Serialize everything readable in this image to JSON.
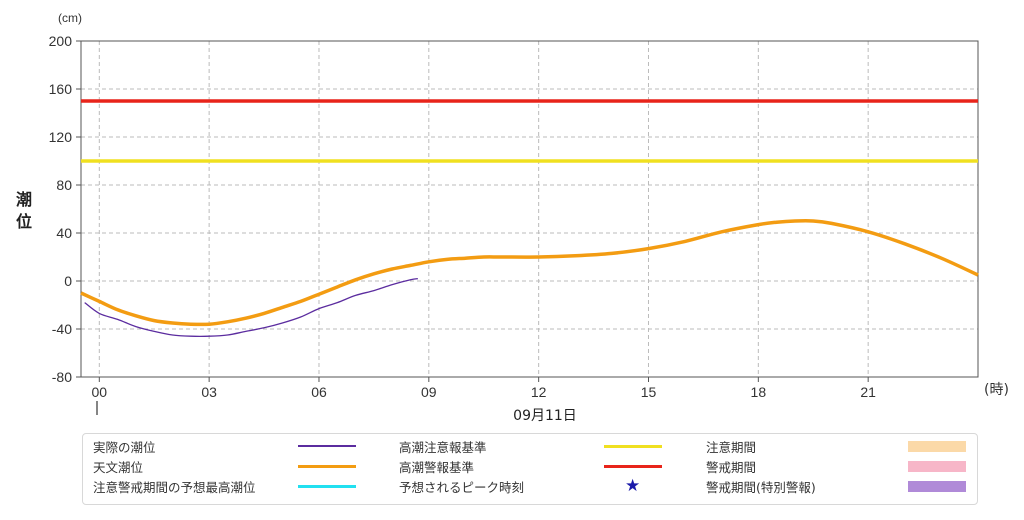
{
  "chart_data": {
    "type": "line",
    "ylabel": "潮位",
    "yunit": "(cm)",
    "xunit": "(時)",
    "date_label": "09月11日",
    "ylim": [
      -80,
      200
    ],
    "yticks": [
      200,
      160,
      120,
      80,
      40,
      0,
      -40,
      -80
    ],
    "xlim": [
      -0.5,
      24
    ],
    "xticks": [
      {
        "x": 0,
        "label": "00"
      },
      {
        "x": 3,
        "label": "03"
      },
      {
        "x": 6,
        "label": "06"
      },
      {
        "x": 9,
        "label": "09"
      },
      {
        "x": 12,
        "label": "12"
      },
      {
        "x": 15,
        "label": "15"
      },
      {
        "x": 18,
        "label": "18"
      },
      {
        "x": 21,
        "label": "21"
      }
    ],
    "grid": true,
    "series": [
      {
        "name": "天文潮位",
        "color": "#f39c12",
        "x": [
          -0.5,
          0,
          0.5,
          1,
          1.5,
          2,
          2.5,
          3,
          3.5,
          4,
          4.5,
          5,
          5.5,
          6,
          6.5,
          7,
          7.5,
          8,
          8.5,
          9,
          9.5,
          10,
          10.5,
          11,
          12,
          13,
          14,
          15,
          16,
          17,
          18,
          18.5,
          19,
          19.5,
          20,
          21,
          22,
          23,
          24
        ],
        "values": [
          -10,
          -17,
          -24,
          -29,
          -33,
          -35,
          -36,
          -36,
          -34,
          -31,
          -27,
          -22,
          -17,
          -11,
          -5,
          1,
          6,
          10,
          13,
          16,
          18,
          19,
          20,
          20,
          20,
          21,
          23,
          27,
          33,
          41,
          47,
          49,
          50,
          50,
          48,
          41,
          31,
          19,
          5
        ]
      },
      {
        "name": "実際の潮位",
        "color": "#5b2c9f",
        "x": [
          -0.4,
          0,
          0.5,
          1,
          1.5,
          2,
          2.5,
          3,
          3.5,
          4,
          4.5,
          5,
          5.5,
          6,
          6.5,
          7,
          7.5,
          8,
          8.5,
          8.7
        ],
        "values": [
          -18,
          -27,
          -32,
          -38,
          -42,
          -45,
          -46,
          -46,
          -45,
          -42,
          -39,
          -35,
          -30,
          -23,
          -18,
          -12,
          -8,
          -3,
          1,
          2
        ]
      },
      {
        "name": "高潮警報基準",
        "color": "#e8241a",
        "x": [
          -0.5,
          24
        ],
        "values": [
          150,
          150
        ]
      },
      {
        "name": "高潮注意報基準",
        "color": "#f0e020",
        "x": [
          -0.5,
          24
        ],
        "values": [
          100,
          100
        ]
      }
    ]
  },
  "legend": [
    {
      "label": "実際の潮位",
      "kind": "line",
      "color": "#5b2c9f",
      "thin": true
    },
    {
      "label": "高潮注意報基準",
      "kind": "line",
      "color": "#f0e020"
    },
    {
      "label": "注意期間",
      "kind": "box",
      "color": "#fbd9a8"
    },
    {
      "label": "天文潮位",
      "kind": "line",
      "color": "#f39c12"
    },
    {
      "label": "高潮警報基準",
      "kind": "line",
      "color": "#e8241a"
    },
    {
      "label": "警戒期間",
      "kind": "box",
      "color": "#f7b6c8"
    },
    {
      "label": "注意警戒期間の予想最高潮位",
      "kind": "line",
      "color": "#22e0f0"
    },
    {
      "label": "予想されるピーク時刻",
      "kind": "star",
      "color": "#1a1aaa"
    },
    {
      "label": "警戒期間(特別警報)",
      "kind": "box",
      "color": "#b08ad8"
    }
  ]
}
